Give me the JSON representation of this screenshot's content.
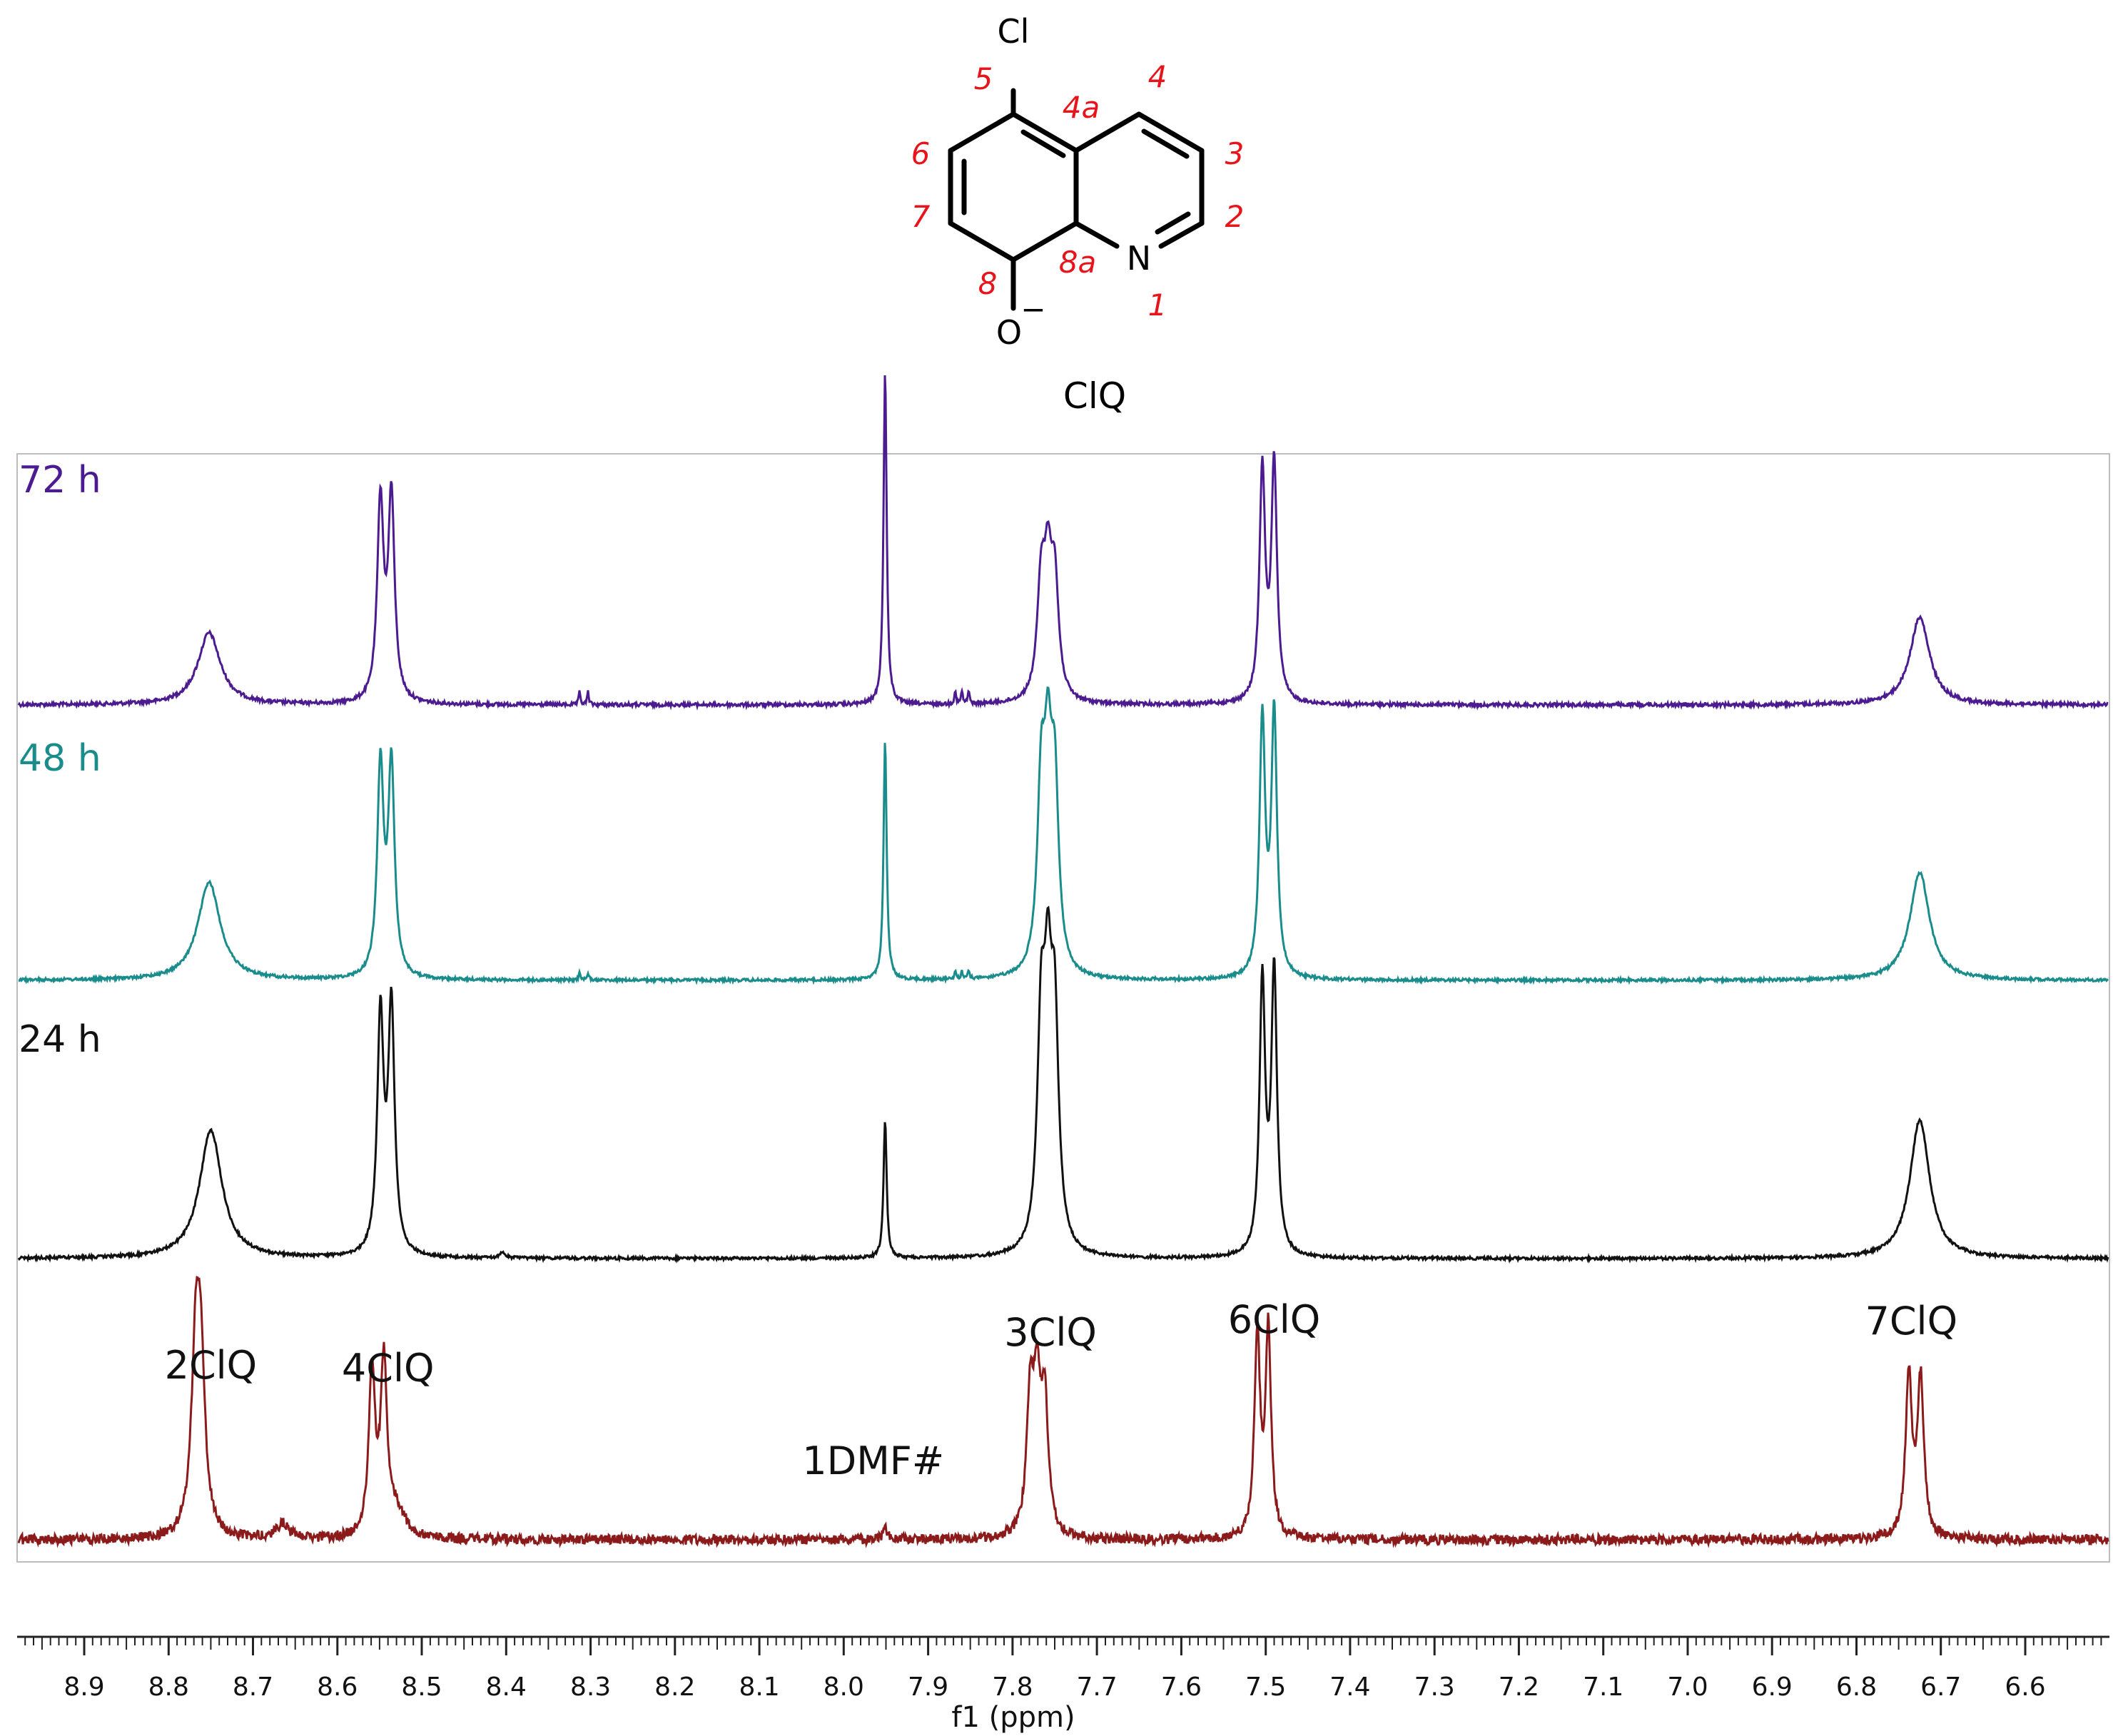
{
  "structure": {
    "name": "ClQ",
    "atoms": {
      "Cl": "Cl",
      "N": "N",
      "O": "O",
      "charge": "−"
    },
    "numbering": [
      "5",
      "4a",
      "4",
      "6",
      "3",
      "7",
      "2",
      "8",
      "8a",
      "1"
    ],
    "number_color": "#e8141c"
  },
  "chart_data": {
    "type": "line",
    "xlabel": "f1 (ppm)",
    "xlim": [
      9.0,
      6.5
    ],
    "x_reversed": true,
    "ticks": [
      "8.9",
      "8.8",
      "8.7",
      "8.6",
      "8.5",
      "8.4",
      "8.3",
      "8.2",
      "8.1",
      "8.0",
      "7.9",
      "7.8",
      "7.7",
      "7.6",
      "7.5",
      "7.4",
      "7.3",
      "7.2",
      "7.1",
      "7.0",
      "6.9",
      "6.8",
      "6.7",
      "6.6"
    ],
    "series": [
      {
        "name": "72 h",
        "color": "#4b1b8f",
        "peaks": [
          {
            "ppm": 8.752,
            "height": 0.28,
            "width": 0.016
          },
          {
            "ppm": 8.549,
            "height": 0.77,
            "width": 0.0045
          },
          {
            "ppm": 8.536,
            "height": 0.79,
            "width": 0.0045
          },
          {
            "ppm": 8.313,
            "height": 0.05,
            "width": 0.0012
          },
          {
            "ppm": 8.303,
            "height": 0.05,
            "width": 0.0012
          },
          {
            "ppm": 7.951,
            "height": 1.3,
            "width": 0.0022
          },
          {
            "ppm": 7.868,
            "height": 0.05,
            "width": 0.0012
          },
          {
            "ppm": 7.86,
            "height": 0.05,
            "width": 0.0012
          },
          {
            "ppm": 7.852,
            "height": 0.05,
            "width": 0.0012
          },
          {
            "ppm": 7.766,
            "height": 0.43,
            "width": 0.0055
          },
          {
            "ppm": 7.758,
            "height": 0.44,
            "width": 0.0055
          },
          {
            "ppm": 7.75,
            "height": 0.43,
            "width": 0.0055
          },
          {
            "ppm": 7.504,
            "height": 0.9,
            "width": 0.004
          },
          {
            "ppm": 7.49,
            "height": 0.92,
            "width": 0.004
          },
          {
            "ppm": 6.725,
            "height": 0.34,
            "width": 0.014
          }
        ]
      },
      {
        "name": "48 h",
        "color": "#1a8c8c",
        "peaks": [
          {
            "ppm": 8.752,
            "height": 0.38,
            "width": 0.016
          },
          {
            "ppm": 8.549,
            "height": 0.81,
            "width": 0.0045
          },
          {
            "ppm": 8.536,
            "height": 0.82,
            "width": 0.0045
          },
          {
            "ppm": 8.313,
            "height": 0.03,
            "width": 0.0012
          },
          {
            "ppm": 8.303,
            "height": 0.03,
            "width": 0.0012
          },
          {
            "ppm": 7.951,
            "height": 0.93,
            "width": 0.0022
          },
          {
            "ppm": 7.868,
            "height": 0.03,
            "width": 0.0012
          },
          {
            "ppm": 7.86,
            "height": 0.03,
            "width": 0.0012
          },
          {
            "ppm": 7.852,
            "height": 0.03,
            "width": 0.0012
          },
          {
            "ppm": 7.766,
            "height": 0.68,
            "width": 0.0055
          },
          {
            "ppm": 7.758,
            "height": 0.7,
            "width": 0.0055
          },
          {
            "ppm": 7.75,
            "height": 0.68,
            "width": 0.0055
          },
          {
            "ppm": 7.504,
            "height": 1.0,
            "width": 0.004
          },
          {
            "ppm": 7.49,
            "height": 1.02,
            "width": 0.004
          },
          {
            "ppm": 6.725,
            "height": 0.42,
            "width": 0.014
          }
        ]
      },
      {
        "name": "24 h",
        "color": "#111111",
        "peaks": [
          {
            "ppm": 8.75,
            "height": 0.5,
            "width": 0.016
          },
          {
            "ppm": 8.549,
            "height": 0.92,
            "width": 0.0045
          },
          {
            "ppm": 8.536,
            "height": 0.96,
            "width": 0.0045
          },
          {
            "ppm": 8.405,
            "height": 0.02,
            "width": 0.004
          },
          {
            "ppm": 7.951,
            "height": 0.54,
            "width": 0.0022
          },
          {
            "ppm": 7.766,
            "height": 0.82,
            "width": 0.0055
          },
          {
            "ppm": 7.758,
            "height": 0.84,
            "width": 0.0055
          },
          {
            "ppm": 7.75,
            "height": 0.82,
            "width": 0.0055
          },
          {
            "ppm": 7.504,
            "height": 1.06,
            "width": 0.004
          },
          {
            "ppm": 7.49,
            "height": 1.1,
            "width": 0.004
          },
          {
            "ppm": 6.725,
            "height": 0.54,
            "width": 0.014
          }
        ]
      },
      {
        "name": "",
        "color": "#8b1a1a",
        "peaks": [
          {
            "ppm": 8.768,
            "height": 0.64,
            "width": 0.006
          },
          {
            "ppm": 8.762,
            "height": 0.64,
            "width": 0.006
          },
          {
            "ppm": 8.665,
            "height": 0.06,
            "width": 0.008
          },
          {
            "ppm": 8.559,
            "height": 0.64,
            "width": 0.0045
          },
          {
            "ppm": 8.545,
            "height": 0.66,
            "width": 0.0045
          },
          {
            "ppm": 8.53,
            "height": 0.1,
            "width": 0.012
          },
          {
            "ppm": 7.951,
            "height": 0.05,
            "width": 0.0025
          },
          {
            "ppm": 7.779,
            "height": 0.5,
            "width": 0.005
          },
          {
            "ppm": 7.771,
            "height": 0.52,
            "width": 0.005
          },
          {
            "ppm": 7.762,
            "height": 0.5,
            "width": 0.005
          },
          {
            "ppm": 7.51,
            "height": 0.78,
            "width": 0.004
          },
          {
            "ppm": 7.497,
            "height": 0.8,
            "width": 0.004
          },
          {
            "ppm": 6.738,
            "height": 0.63,
            "width": 0.0045
          },
          {
            "ppm": 6.724,
            "height": 0.61,
            "width": 0.0045
          }
        ]
      }
    ],
    "annotations": [
      {
        "text": "2ClQ",
        "ppm": 8.75
      },
      {
        "text": "4ClQ",
        "ppm": 8.54
      },
      {
        "text": "1DMF#",
        "ppm": 7.965
      },
      {
        "text": "3ClQ",
        "ppm": 7.755
      },
      {
        "text": "6ClQ",
        "ppm": 7.49
      },
      {
        "text": "7ClQ",
        "ppm": 6.735
      }
    ]
  }
}
